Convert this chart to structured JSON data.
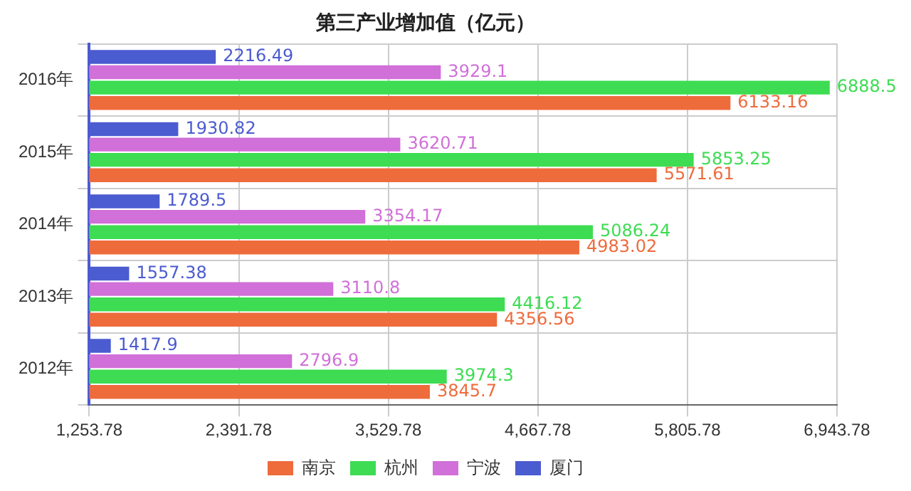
{
  "chart_data": {
    "type": "bar",
    "orientation": "horizontal",
    "title": "第三产业增加值（亿元）",
    "categories": [
      "2016年",
      "2015年",
      "2014年",
      "2013年",
      "2012年"
    ],
    "series": [
      {
        "name": "厦门",
        "color": "#4b5bd0",
        "values": [
          2216.49,
          1930.82,
          1789.5,
          1557.38,
          1417.9
        ]
      },
      {
        "name": "宁波",
        "color": "#d070d8",
        "values": [
          3929.1,
          3620.71,
          3354.17,
          3110.8,
          2796.9
        ]
      },
      {
        "name": "杭州",
        "color": "#3ddc52",
        "values": [
          6888.5,
          5853.25,
          5086.24,
          4416.12,
          3974.3
        ]
      },
      {
        "name": "南京",
        "color": "#ee6b3c",
        "values": [
          6133.16,
          5571.61,
          4983.02,
          4356.56,
          3845.7
        ]
      }
    ],
    "xlim": [
      1253.78,
      6943.78
    ],
    "xticks": [
      {
        "value": 1253.78,
        "label": "1,253.78"
      },
      {
        "value": 2391.78,
        "label": "2,391.78"
      },
      {
        "value": 3529.78,
        "label": "3,529.78"
      },
      {
        "value": 4667.78,
        "label": "4,667.78"
      },
      {
        "value": 5805.78,
        "label": "5,805.78"
      },
      {
        "value": 6943.78,
        "label": "6,943.78"
      }
    ],
    "grid": true,
    "legend": "bottom",
    "data_labels": true
  }
}
